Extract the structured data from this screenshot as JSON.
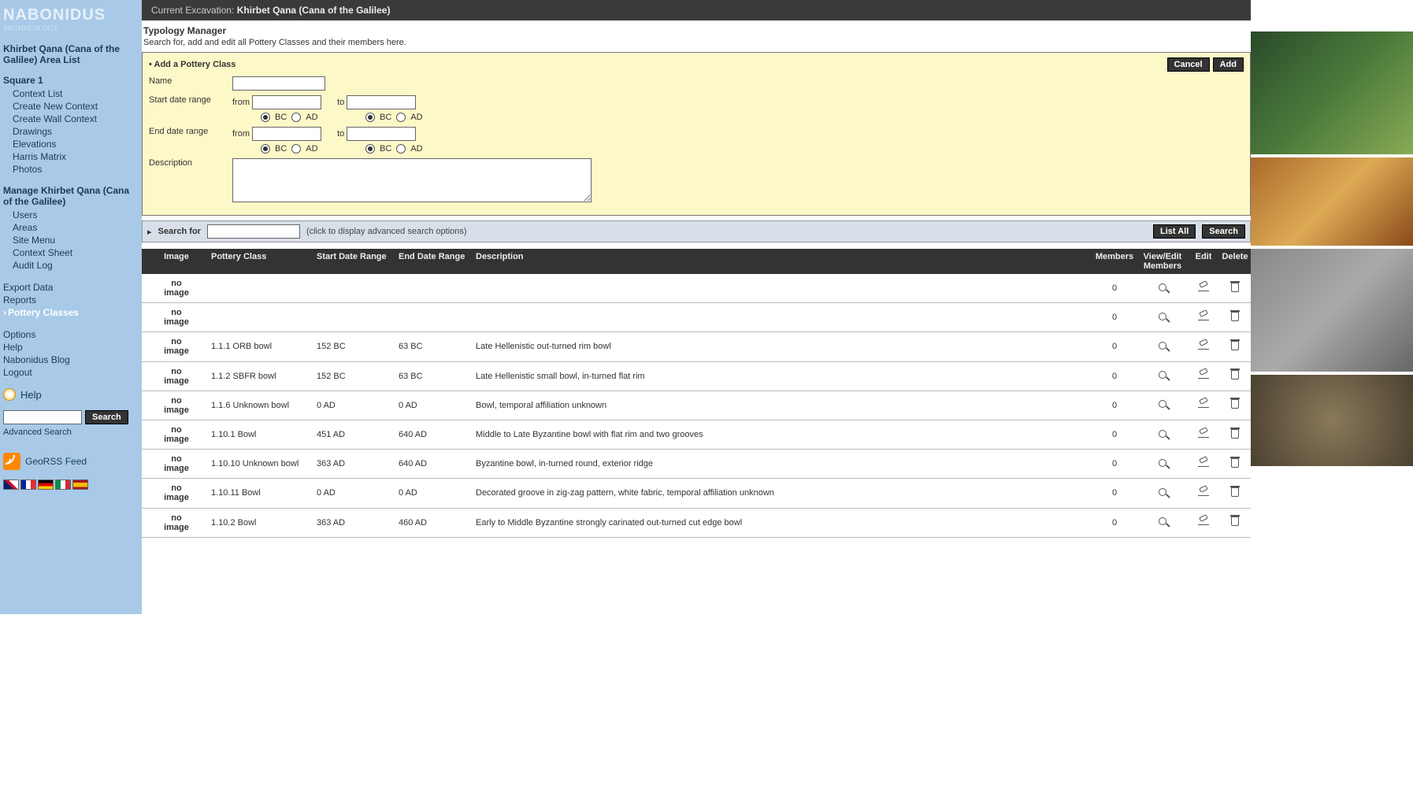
{
  "brand": {
    "name": "NABONIDUS",
    "sub": "ARCHAEOLOGY"
  },
  "sidebar": {
    "area_title": "Khirbet Qana (Cana of the Galilee) Area List",
    "square_title": "Square 1",
    "square_items": [
      "Context List",
      "Create New Context",
      "Create Wall Context",
      "Drawings",
      "Elevations",
      "Harris Matrix",
      "Photos"
    ],
    "manage_title": "Manage Khirbet Qana (Cana of the Galilee)",
    "manage_items": [
      "Users",
      "Areas",
      "Site Menu",
      "Context Sheet",
      "Audit Log"
    ],
    "loose": [
      "Export Data",
      "Reports",
      "Pottery Classes",
      "Options",
      "Help",
      "Nabonidus Blog",
      "Logout"
    ],
    "help": "Help",
    "search_btn": "Search",
    "adv_search": "Advanced Search",
    "rss": "GeoRSS Feed"
  },
  "titlebar": {
    "prefix": "Current Excavation:",
    "value": "Khirbet Qana (Cana of the Galilee)"
  },
  "header": {
    "title": "Typology Manager",
    "sub": "Search for, add and edit all Pottery Classes and their members here."
  },
  "form": {
    "title": "Add a Pottery Class",
    "cancel": "Cancel",
    "add": "Add",
    "name_label": "Name",
    "start_label": "Start date range",
    "end_label": "End date range",
    "from": "from",
    "to": "to",
    "bc": "BC",
    "ad": "AD",
    "desc_label": "Description"
  },
  "searchbar": {
    "label": "Search for",
    "hint": "(click to display advanced search options)",
    "list_all": "List All",
    "search": "Search"
  },
  "table": {
    "headers": {
      "image": "Image",
      "class": "Pottery Class",
      "start": "Start Date Range",
      "end": "End Date Range",
      "desc": "Description",
      "members": "Members",
      "view": "View/Edit Members",
      "edit": "Edit",
      "del": "Delete"
    },
    "no_image": "no image",
    "rows": [
      {
        "class": "",
        "start": "",
        "end": "",
        "desc": "",
        "members": "0"
      },
      {
        "class": "",
        "start": "",
        "end": "",
        "desc": "",
        "members": "0"
      },
      {
        "class": "1.1.1 ORB bowl",
        "start": "152 BC",
        "end": "63 BC",
        "desc": "Late Hellenistic out-turned rim bowl",
        "members": "0"
      },
      {
        "class": "1.1.2 SBFR bowl",
        "start": "152 BC",
        "end": "63 BC",
        "desc": "Late Hellenistic small bowl, in-turned flat rim",
        "members": "0"
      },
      {
        "class": "1.1.6 Unknown bowl",
        "start": "0 AD",
        "end": "0 AD",
        "desc": "Bowl, temporal affiliation unknown",
        "members": "0"
      },
      {
        "class": "1.10.1 Bowl",
        "start": "451 AD",
        "end": "640 AD",
        "desc": "Middle to Late Byzantine bowl with flat rim and two grooves",
        "members": "0"
      },
      {
        "class": "1.10.10 Unknown bowl",
        "start": "363 AD",
        "end": "640 AD",
        "desc": "Byzantine bowl, in-turned round, exterior ridge",
        "members": "0"
      },
      {
        "class": "1.10.11 Bowl",
        "start": "0 AD",
        "end": "0 AD",
        "desc": "Decorated groove in zig-zag pattern, white fabric, temporal affiliation unknown",
        "members": "0"
      },
      {
        "class": "1.10.2 Bowl",
        "start": "363 AD",
        "end": "460 AD",
        "desc": "Early to Middle Byzantine strongly carinated out-turned cut edge bowl",
        "members": "0"
      }
    ]
  }
}
